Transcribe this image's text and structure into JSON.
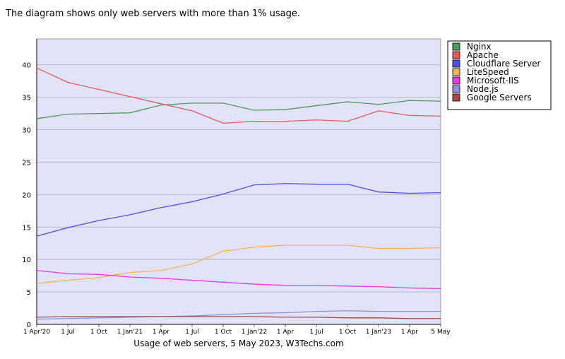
{
  "intro": "The diagram shows only web servers with more than 1% usage.",
  "chart_data": {
    "type": "line",
    "xlabel": "Usage of web servers, 5 May 2023, W3Techs.com",
    "categories": [
      "1 Apr'20",
      "1 Jul",
      "1 Oct",
      "1 Jan'21",
      "1 Apr",
      "1 Jul",
      "1 Oct",
      "1 Jan'22",
      "1 Apr",
      "1 Jul",
      "1 Oct",
      "1 Jan'23",
      "1 Apr",
      "5 May"
    ],
    "ylim": [
      0,
      44
    ],
    "yticks": [
      0,
      5,
      10,
      15,
      20,
      25,
      30,
      35,
      40
    ],
    "grid": true,
    "series": [
      {
        "name": "Nginx",
        "color": "#4e9a5c",
        "values": [
          31.7,
          32.4,
          32.5,
          32.6,
          33.8,
          34.1,
          34.1,
          33.0,
          33.1,
          33.7,
          34.3,
          33.9,
          34.5,
          34.4
        ]
      },
      {
        "name": "Apache",
        "color": "#e85a5a",
        "values": [
          39.5,
          37.3,
          36.2,
          35.1,
          34.0,
          32.9,
          31.0,
          31.3,
          31.3,
          31.5,
          31.3,
          32.9,
          32.2,
          32.1
        ]
      },
      {
        "name": "Cloudflare Server",
        "color": "#5252e0",
        "values": [
          13.6,
          14.9,
          16.0,
          16.9,
          18.0,
          18.9,
          20.1,
          21.5,
          21.7,
          21.6,
          21.6,
          20.4,
          20.2,
          20.3
        ]
      },
      {
        "name": "LiteSpeed",
        "color": "#f2b35a",
        "values": [
          6.3,
          6.8,
          7.2,
          8.0,
          8.3,
          9.3,
          11.3,
          11.9,
          12.2,
          12.2,
          12.2,
          11.7,
          11.7,
          11.8
        ]
      },
      {
        "name": "Microsoft-IIS",
        "color": "#e83ae8",
        "values": [
          8.3,
          7.8,
          7.7,
          7.3,
          7.1,
          6.8,
          6.5,
          6.2,
          6.0,
          6.0,
          5.9,
          5.8,
          5.6,
          5.5
        ]
      },
      {
        "name": "Node.js",
        "color": "#9090e0",
        "values": [
          0.8,
          0.9,
          1.0,
          1.1,
          1.2,
          1.3,
          1.5,
          1.7,
          1.8,
          2.0,
          2.1,
          2.0,
          2.0,
          2.0
        ]
      },
      {
        "name": "Google Servers",
        "color": "#a84848",
        "values": [
          1.1,
          1.2,
          1.2,
          1.2,
          1.2,
          1.2,
          1.2,
          1.2,
          1.1,
          1.1,
          1.0,
          1.0,
          0.9,
          0.9
        ]
      }
    ]
  }
}
